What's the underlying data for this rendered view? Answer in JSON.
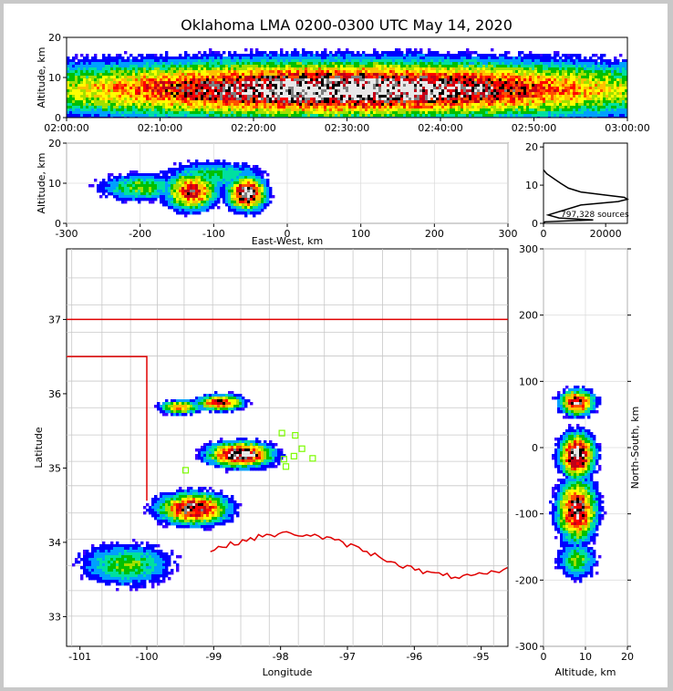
{
  "figure": {
    "title": "Oklahoma LMA 0200-0300 UTC May 14, 2020",
    "source_count_label": "797,328 sources"
  },
  "colors": {
    "state_border": "#e00000",
    "county_lines": "#c8c8c8",
    "stations": "#7cfc00",
    "colormap": [
      "#3b00ff",
      "#0000ff",
      "#00a0ff",
      "#00e0a0",
      "#00c000",
      "#a0e000",
      "#ffff00",
      "#ffc000",
      "#ff5000",
      "#ff0000",
      "#c00018",
      "#000000",
      "#7f7f7f",
      "#e8e8e8"
    ]
  },
  "chart_data": [
    {
      "id": "time-height",
      "type": "heatmap",
      "xlabel": "",
      "ylabel": "Altitude, km",
      "x_ticks": [
        "02:00:00",
        "02:10:00",
        "02:20:00",
        "02:30:00",
        "02:40:00",
        "02:50:00",
        "03:00:00"
      ],
      "x_range_minutes": [
        0,
        60
      ],
      "ylim": [
        0,
        20
      ],
      "y_ticks": [
        0,
        10,
        20
      ],
      "blobs": [
        {
          "x": 30,
          "y": 7,
          "w": 32,
          "h": 6,
          "amp": 1.0
        },
        {
          "x": 30,
          "y": 9.5,
          "w": 32,
          "h": 3.5,
          "amp": 0.6
        }
      ]
    },
    {
      "id": "east-west-altitude",
      "type": "heatmap",
      "xlabel": "East-West, km",
      "ylabel": "Altitude, km",
      "xlim": [
        -300,
        300
      ],
      "x_ticks": [
        -300,
        -200,
        -100,
        0,
        100,
        200,
        300
      ],
      "ylim": [
        0,
        20
      ],
      "y_ticks": [
        0,
        10,
        20
      ],
      "blobs": [
        {
          "x": -200,
          "y": 9,
          "w": 50,
          "h": 3,
          "amp": 0.35
        },
        {
          "x": -130,
          "y": 8,
          "w": 30,
          "h": 4,
          "amp": 0.75
        },
        {
          "x": -55,
          "y": 7.5,
          "w": 22,
          "h": 3.5,
          "amp": 1.0
        },
        {
          "x": -100,
          "y": 12,
          "w": 60,
          "h": 3,
          "amp": 0.3
        }
      ]
    },
    {
      "id": "altitude-histogram",
      "type": "line",
      "xlabel": "",
      "ylabel": "",
      "xlim": [
        0,
        27000
      ],
      "x_ticks": [
        0,
        20000
      ],
      "ylim": [
        0,
        21
      ],
      "y_ticks": [
        0,
        10,
        20
      ],
      "x": [
        0,
        400,
        16000,
        5000,
        1500,
        12000,
        24000,
        27000,
        26000,
        20000,
        12000,
        8000,
        5500,
        3500,
        1000,
        0
      ],
      "y": [
        0,
        0.4,
        0.9,
        1.4,
        2.2,
        4.8,
        5.7,
        6.3,
        6.8,
        7.4,
        8.2,
        9.2,
        10.5,
        11.6,
        13.0,
        14.0
      ]
    },
    {
      "id": "plan-view",
      "type": "heatmap",
      "xlabel": "Longitude",
      "ylabel": "Latitude",
      "xlim": [
        -101.2,
        -94.6
      ],
      "x_ticks": [
        -101,
        -100,
        -99,
        -98,
        -97,
        -96,
        -95
      ],
      "ylim": [
        32.6,
        37.95
      ],
      "y_ticks": [
        33,
        34,
        35,
        36,
        37
      ],
      "stations": [
        {
          "lon": -97.98,
          "lat": 35.47
        },
        {
          "lon": -97.78,
          "lat": 35.44
        },
        {
          "lon": -97.68,
          "lat": 35.26
        },
        {
          "lon": -97.8,
          "lat": 35.16
        },
        {
          "lon": -97.95,
          "lat": 35.12
        },
        {
          "lon": -97.52,
          "lat": 35.13
        },
        {
          "lon": -97.92,
          "lat": 35.02
        },
        {
          "lon": -99.42,
          "lat": 34.97
        }
      ],
      "blobs": [
        {
          "x": -99.5,
          "y": 35.82,
          "w": 0.25,
          "h": 0.08,
          "amp": 0.6
        },
        {
          "x": -98.9,
          "y": 35.88,
          "w": 0.3,
          "h": 0.09,
          "amp": 0.75
        },
        {
          "x": -98.6,
          "y": 35.18,
          "w": 0.4,
          "h": 0.14,
          "amp": 1.0
        },
        {
          "x": -99.3,
          "y": 34.45,
          "w": 0.45,
          "h": 0.18,
          "amp": 0.85
        },
        {
          "x": -100.3,
          "y": 33.7,
          "w": 0.6,
          "h": 0.25,
          "amp": 0.35
        }
      ]
    },
    {
      "id": "altitude-north-south",
      "type": "heatmap",
      "xlabel": "Altitude, km",
      "ylabel": "North-South, km",
      "xlim": [
        0,
        20
      ],
      "x_ticks": [
        0,
        10,
        20
      ],
      "ylim": [
        -300,
        300
      ],
      "y_ticks": [
        -300,
        -200,
        -100,
        0,
        100,
        200,
        300
      ],
      "blobs": [
        {
          "x": 8,
          "y": 68,
          "w": 3.5,
          "h": 16,
          "amp": 0.85
        },
        {
          "x": 8,
          "y": -12,
          "w": 3.5,
          "h": 28,
          "amp": 1.0
        },
        {
          "x": 8,
          "y": -95,
          "w": 4,
          "h": 40,
          "amp": 0.85
        },
        {
          "x": 8,
          "y": -170,
          "w": 4,
          "h": 25,
          "amp": 0.35
        }
      ]
    }
  ]
}
